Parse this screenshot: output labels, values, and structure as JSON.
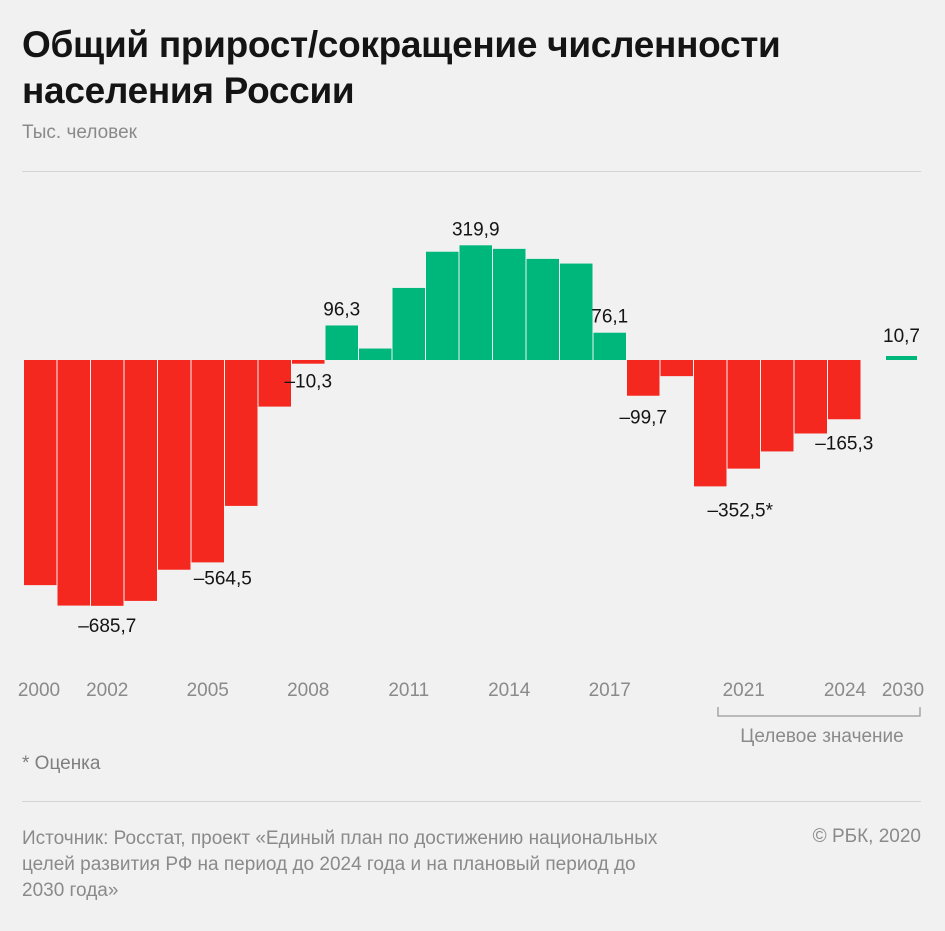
{
  "header": {
    "title": "Общий прирост/сокращение численности населения России",
    "subtitle": "Тыс. человек"
  },
  "footer": {
    "note": "* Оценка",
    "source": "Источник: Росстат, проект «Единый план по достижению национальных целей развития РФ на период до 2024 года и на плановый период до 2030 года»",
    "copyright": "© РБК, 2020"
  },
  "colors": {
    "negative": "#f5281f",
    "positive": "#00b77b",
    "text": "#141414",
    "axis_text": "#8a8a8a",
    "rule": "#d4d4d4"
  },
  "chart_data": {
    "type": "bar",
    "title": "Общий прирост/сокращение численности населения России",
    "ylabel": "Тыс. человек",
    "categories": [
      "2000",
      "2001",
      "2002",
      "2003",
      "2004",
      "2005",
      "2006",
      "2007",
      "2008",
      "2009",
      "2010",
      "2011",
      "2012",
      "2013",
      "2014",
      "2015",
      "2016",
      "2017",
      "2018",
      "2019",
      "2020",
      "2021",
      "2022",
      "2023",
      "2024",
      "2030"
    ],
    "values": [
      -628,
      -685,
      -685.7,
      -672,
      -585,
      -564.5,
      -407,
      -130,
      -10.3,
      96.3,
      32,
      201,
      302,
      319.9,
      310,
      282,
      269,
      76.1,
      -99.7,
      -45,
      -352.5,
      -303,
      -255,
      -205,
      -165.3,
      10.7
    ],
    "ylim": [
      -700,
      340
    ],
    "x_tick_labels": [
      {
        "year": "2000",
        "text": "2000"
      },
      {
        "year": "2002",
        "text": "2002"
      },
      {
        "year": "2005",
        "text": "2005"
      },
      {
        "year": "2008",
        "text": "2008"
      },
      {
        "year": "2011",
        "text": "2011"
      },
      {
        "year": "2014",
        "text": "2014"
      },
      {
        "year": "2017",
        "text": "2017"
      },
      {
        "year": "2021",
        "text": "2021"
      },
      {
        "year": "2024",
        "text": "2024"
      },
      {
        "year": "2030",
        "text": "2030"
      }
    ],
    "data_labels": [
      {
        "year": "2002",
        "text": "–685,7"
      },
      {
        "year": "2005",
        "text": "–564,5"
      },
      {
        "year": "2008",
        "text": "–10,3"
      },
      {
        "year": "2009",
        "text": "96,3"
      },
      {
        "year": "2013",
        "text": "319,9"
      },
      {
        "year": "2017",
        "text": "76,1"
      },
      {
        "year": "2018",
        "text": "–99,7"
      },
      {
        "year": "2020",
        "text": "–352,5*"
      },
      {
        "year": "2024",
        "text": "–165,3"
      },
      {
        "year": "2030",
        "text": "10,7"
      }
    ],
    "bracket_label": "Целевое значение",
    "grid": false,
    "legend": "none"
  }
}
